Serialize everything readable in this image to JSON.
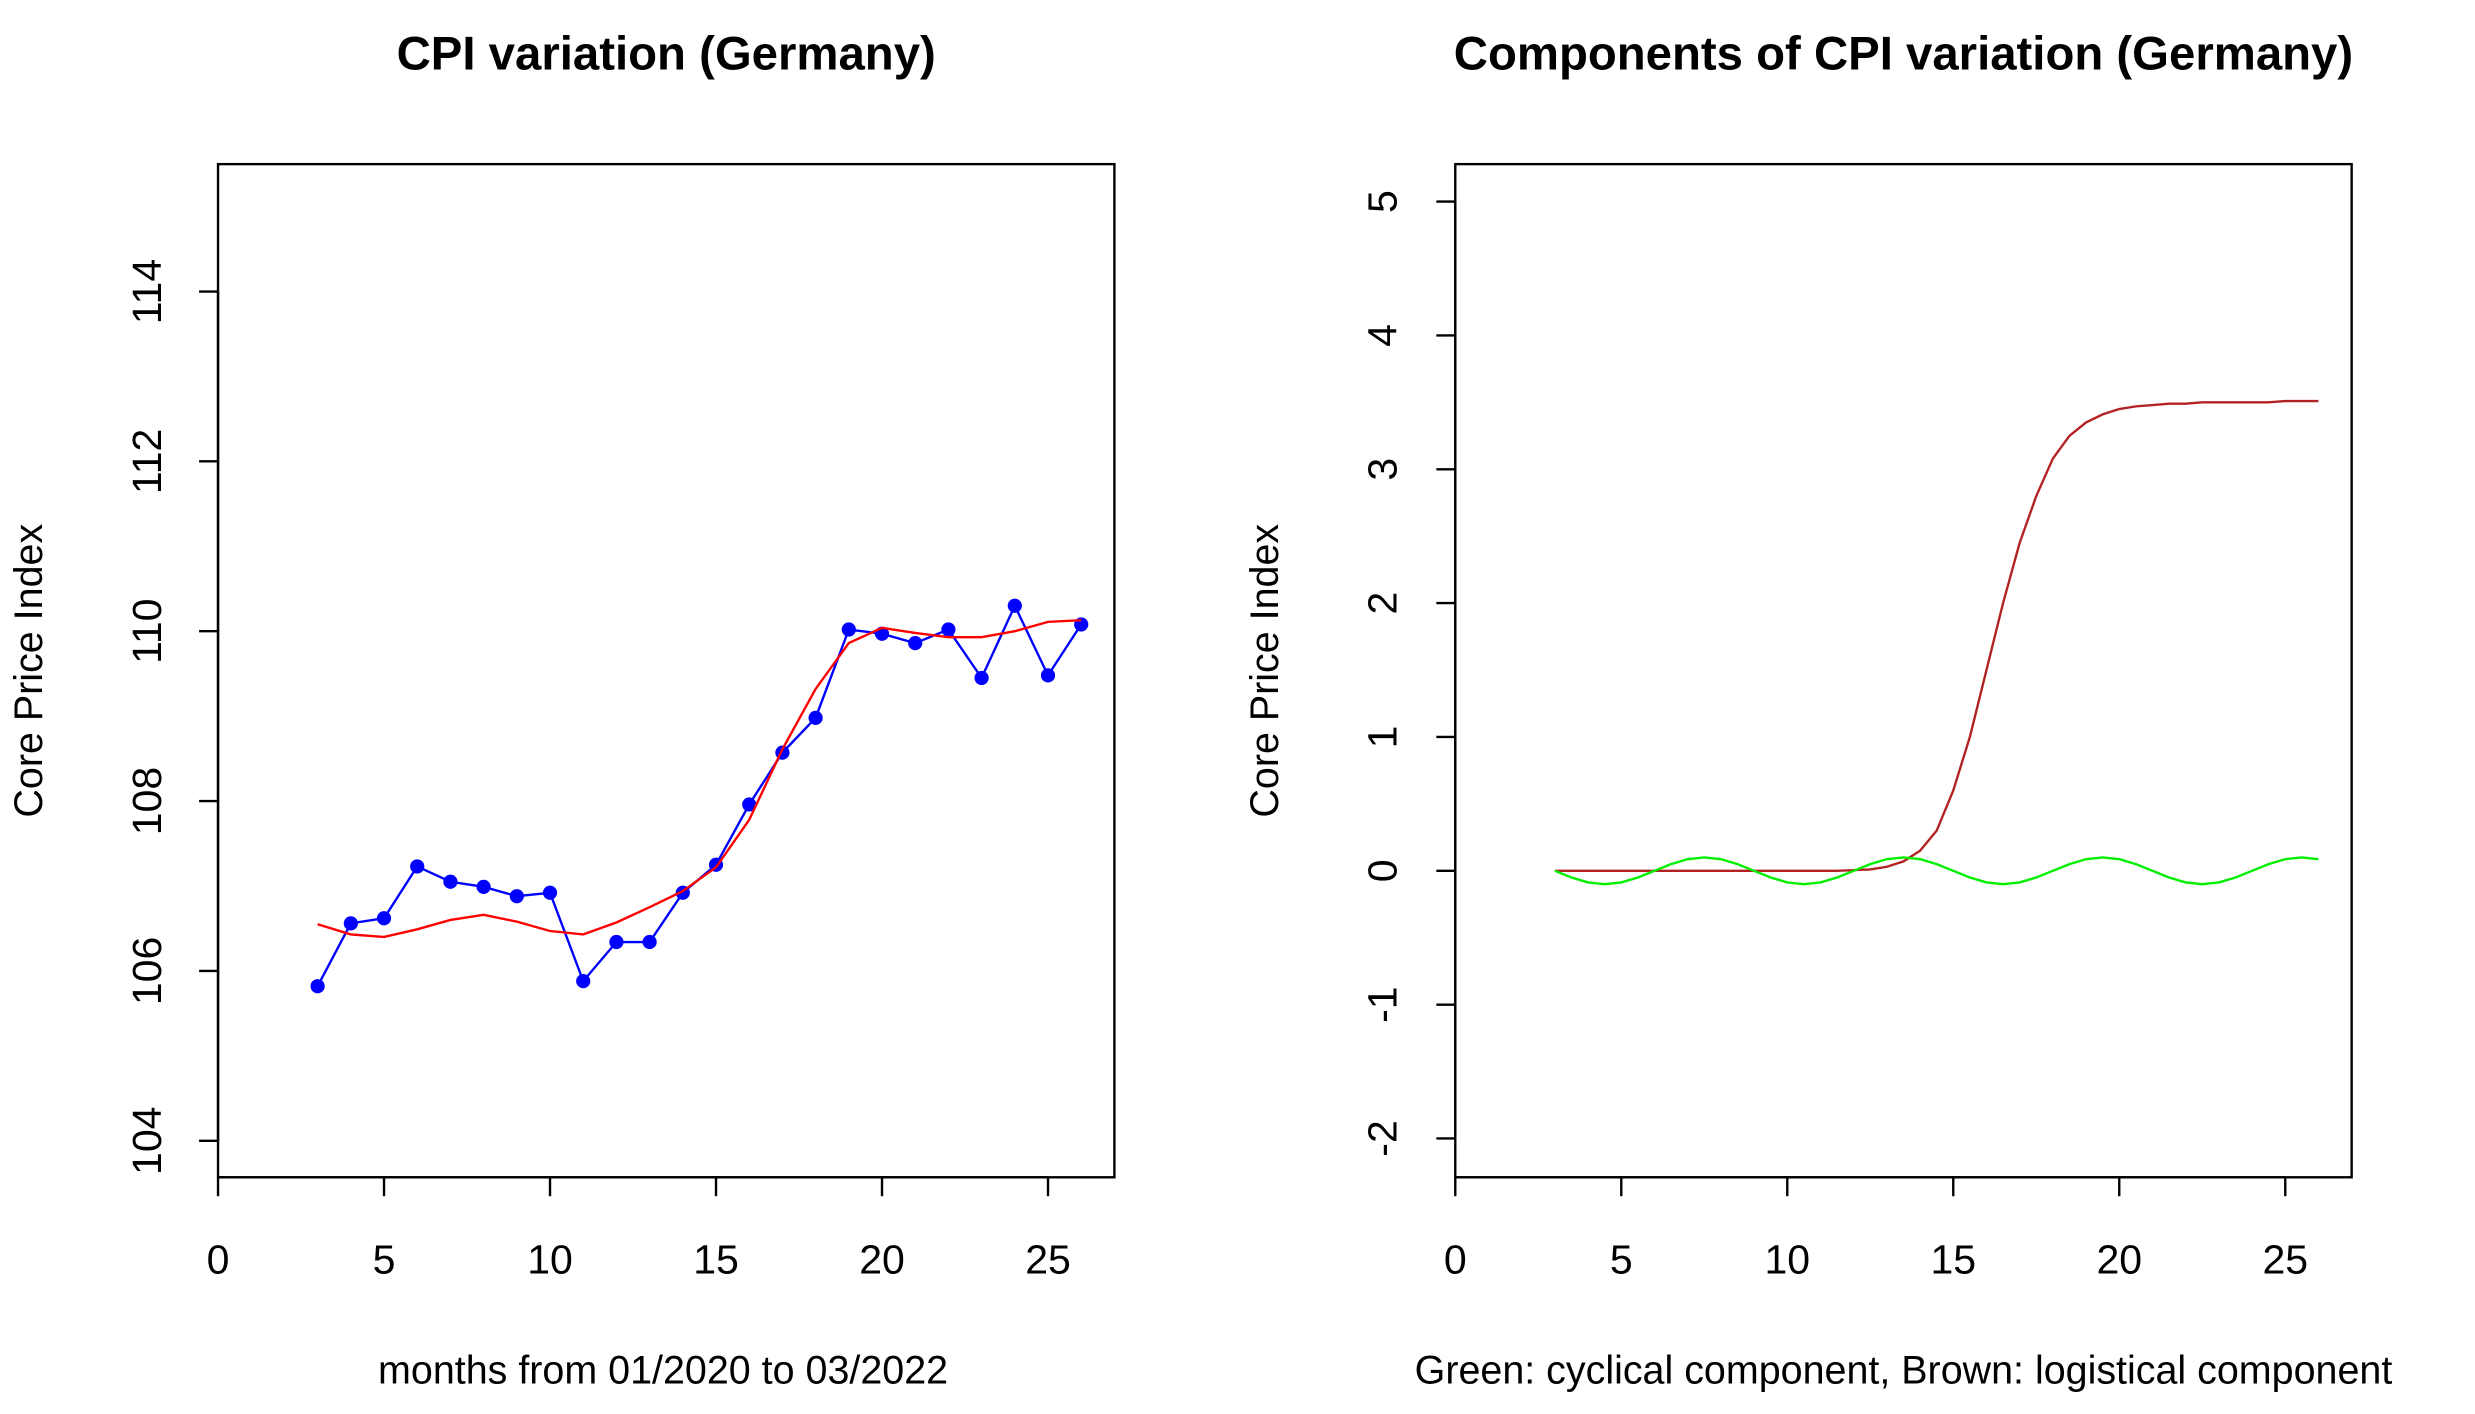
{
  "chart_data": [
    {
      "type": "line",
      "title": "CPI variation (Germany)",
      "x_label": "months from 01/2020 to 03/2022",
      "y_label": "Core Price Index",
      "x": [
        3,
        4,
        5,
        6,
        7,
        8,
        9,
        10,
        11,
        12,
        13,
        14,
        15,
        16,
        17,
        18,
        19,
        20,
        21,
        22,
        23,
        24,
        25,
        26
      ],
      "series": [
        {
          "color": "#0000ff",
          "markers": true,
          "values": [
            105.82,
            106.56,
            106.62,
            107.23,
            107.05,
            106.99,
            106.88,
            106.92,
            105.88,
            106.34,
            106.34,
            106.92,
            107.25,
            107.96,
            108.57,
            108.98,
            110.02,
            109.97,
            109.86,
            110.02,
            109.45,
            110.3,
            109.48,
            110.08
          ]
        },
        {
          "color": "#ff0000",
          "markers": false,
          "values": [
            106.55,
            106.43,
            106.4,
            106.49,
            106.6,
            106.66,
            106.58,
            106.47,
            106.43,
            106.57,
            106.75,
            106.94,
            107.22,
            107.78,
            108.61,
            109.32,
            109.86,
            110.04,
            109.98,
            109.93,
            109.93,
            110.0,
            110.11,
            110.13
          ]
        }
      ],
      "xlim": [
        0,
        27
      ],
      "ylim": [
        103.57,
        115.5
      ],
      "xticks": [
        0,
        5,
        10,
        15,
        20,
        25
      ],
      "yticks": [
        104,
        106,
        108,
        110,
        112,
        114
      ]
    },
    {
      "type": "line",
      "title": "Components of CPI variation (Germany)",
      "x_label": "Green: cyclical component, Brown: logistical component",
      "y_label": "Core Price Index",
      "x": [
        3,
        3.5,
        4,
        4.5,
        5,
        5.5,
        6,
        6.5,
        7,
        7.5,
        8,
        8.5,
        9,
        9.5,
        10,
        10.5,
        11,
        11.5,
        12,
        12.5,
        13,
        13.5,
        14,
        14.5,
        15,
        15.5,
        16,
        16.5,
        17,
        17.5,
        18,
        18.5,
        19,
        19.5,
        20,
        20.5,
        21,
        21.5,
        22,
        22.5,
        23,
        23.5,
        24,
        24.5,
        25,
        25.5,
        26
      ],
      "series": [
        {
          "color": "#b22222",
          "markers": false,
          "values": [
            0,
            0,
            0,
            0,
            0,
            0,
            0,
            0,
            0,
            0,
            0,
            0,
            0,
            0,
            0,
            0,
            0,
            0,
            0.005,
            0.01,
            0.03,
            0.07,
            0.15,
            0.3,
            0.6,
            1.0,
            1.5,
            2.0,
            2.45,
            2.8,
            3.08,
            3.25,
            3.35,
            3.41,
            3.45,
            3.47,
            3.48,
            3.49,
            3.49,
            3.5,
            3.5,
            3.5,
            3.5,
            3.5,
            3.51,
            3.51,
            3.51
          ]
        },
        {
          "color": "#00ee00",
          "markers": false,
          "values": [
            0,
            -0.05,
            -0.087,
            -0.1,
            -0.087,
            -0.05,
            0,
            0.05,
            0.087,
            0.1,
            0.087,
            0.05,
            0,
            -0.05,
            -0.087,
            -0.1,
            -0.087,
            -0.05,
            0,
            0.05,
            0.087,
            0.1,
            0.087,
            0.05,
            0,
            -0.05,
            -0.087,
            -0.1,
            -0.087,
            -0.05,
            0,
            0.05,
            0.087,
            0.1,
            0.087,
            0.05,
            0,
            -0.05,
            -0.087,
            -0.1,
            -0.087,
            -0.05,
            0,
            0.05,
            0.087,
            0.1,
            0.087
          ]
        }
      ],
      "xlim": [
        0,
        27
      ],
      "ylim": [
        -2.29,
        5.28
      ],
      "xticks": [
        0,
        5,
        10,
        15,
        20,
        25
      ],
      "yticks": [
        -2,
        -1,
        0,
        1,
        2,
        3,
        4,
        5
      ]
    }
  ]
}
